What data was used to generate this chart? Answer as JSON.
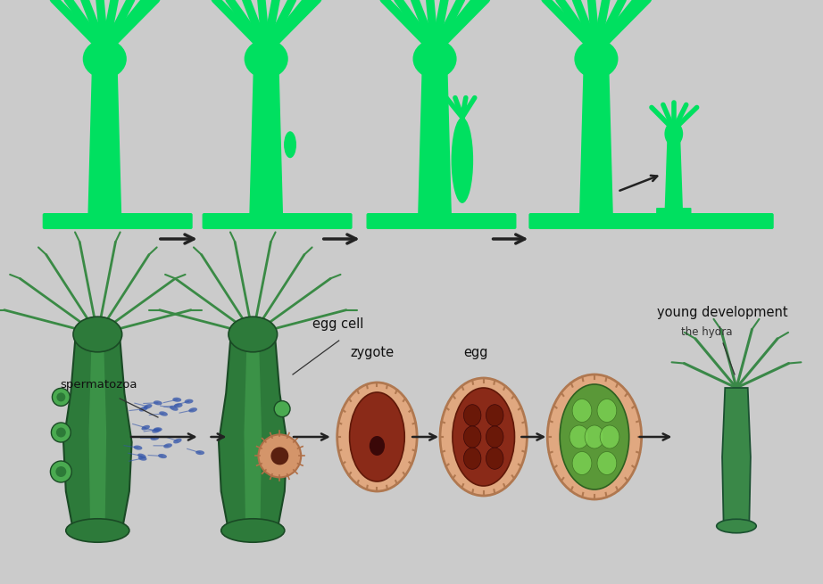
{
  "bg_color": "#cbcbcb",
  "top_green": "#00e060",
  "bottom_green_body": "#2d7a3a",
  "bottom_green_outline": "#1a4a25",
  "bottom_green_light": "#4aaa55",
  "bottom_green_tentacle": "#3a8a45",
  "salmon_outer": "#e0a080",
  "salmon_edge": "#c08060",
  "dark_red_inner": "#8a2818",
  "dark_red_cells": "#7a2010",
  "green_cell_fill": "#78c858",
  "green_cell_edge": "#3a7020",
  "arrow_color": "#222222",
  "text_color": "#111111",
  "text_color2": "#333333",
  "labels": {
    "spermatozoa": "spermatozoa",
    "egg_cell": "egg cell",
    "zygote": "zygote",
    "egg": "egg",
    "young_development": "young development",
    "the_hydra": "the hydra"
  }
}
